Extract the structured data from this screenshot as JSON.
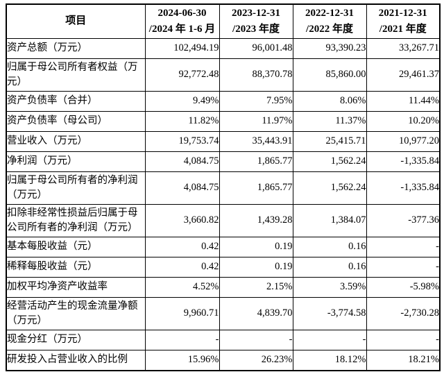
{
  "table": {
    "header": {
      "item": "项目",
      "col1": "2024-06-30\n/2024 年 1-6 月",
      "col2": "2023-12-31\n/2023 年度",
      "col3": "2022-12-31\n/2022 年度",
      "col4": "2021-12-31\n/2021 年度"
    },
    "rows": [
      {
        "label": "资产总额（万元）",
        "values": [
          "102,494.19",
          "96,001.48",
          "93,390.23",
          "33,267.71"
        ]
      },
      {
        "label": "归属于母公司所有者权益（万\n元）",
        "values": [
          "92,772.48",
          "88,370.78",
          "85,860.00",
          "29,461.37"
        ]
      },
      {
        "label": "资产负债率（合并）",
        "values": [
          "9.49%",
          "7.95%",
          "8.06%",
          "11.44%"
        ]
      },
      {
        "label": "资产负债率（母公司）",
        "values": [
          "11.82%",
          "11.97%",
          "11.37%",
          "10.20%"
        ]
      },
      {
        "label": "营业收入（万元）",
        "values": [
          "19,753.74",
          "35,443.91",
          "25,415.71",
          "10,977.20"
        ]
      },
      {
        "label": "净利润（万元）",
        "values": [
          "4,084.75",
          "1,865.77",
          "1,562.24",
          "-1,335.84"
        ]
      },
      {
        "label": "归属于母公司所有者的净利润\n（万元）",
        "values": [
          "4,084.75",
          "1,865.77",
          "1,562.24",
          "-1,335.84"
        ]
      },
      {
        "label": "扣除非经常性损益后归属于母\n公司所有者的净利润（万元）",
        "values": [
          "3,660.82",
          "1,439.28",
          "1,384.07",
          "-377.36"
        ]
      },
      {
        "label": "基本每股收益（元）",
        "values": [
          "0.42",
          "0.19",
          "0.16",
          "-"
        ]
      },
      {
        "label": "稀释每股收益（元）",
        "values": [
          "0.42",
          "0.19",
          "0.16",
          "-"
        ]
      },
      {
        "label": "加权平均净资产收益率",
        "values": [
          "4.52%",
          "2.15%",
          "3.59%",
          "-5.98%"
        ]
      },
      {
        "label": "经营活动产生的现金流量净额\n（万元）",
        "values": [
          "9,960.71",
          "4,839.70",
          "-3,774.58",
          "-2,730.28"
        ]
      },
      {
        "label": "现金分红（万元）",
        "values": [
          "-",
          "-",
          "-",
          "-"
        ]
      },
      {
        "label": "研发投入占营业收入的比例",
        "values": [
          "15.96%",
          "26.23%",
          "18.12%",
          "18.21%"
        ]
      }
    ],
    "text_color": "#000000",
    "border_color": "#000000",
    "background_color": "#ffffff"
  }
}
